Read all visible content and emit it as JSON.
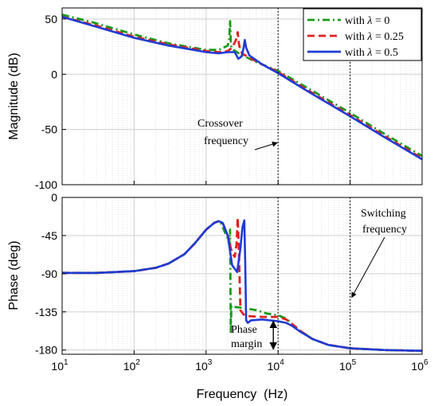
{
  "chart_data": [
    {
      "type": "line",
      "title": "",
      "xlabel": "",
      "ylabel": "Magnitude (dB)",
      "xscale": "log",
      "xlim": [
        10,
        1000000
      ],
      "ylim": [
        -100,
        60
      ],
      "yticks": [
        -100,
        -50,
        0,
        50
      ],
      "ytick_labels": [
        "-100",
        "-50",
        "0",
        "50"
      ],
      "grid": true,
      "legend_position": "top-right",
      "series": [
        {
          "name": "with λ = 0",
          "legend_prefix": "with ",
          "legend_symbol": "λ",
          "legend_suffix": " = 0",
          "color": "#1a9a1a",
          "dash": "dash-dot",
          "x": [
            10,
            30,
            100,
            300,
            1000,
            1500,
            2000,
            2100,
            2150,
            2200,
            2250,
            2400,
            3000,
            5000,
            10000,
            30000,
            100000,
            300000,
            1000000
          ],
          "y": [
            54,
            46,
            36,
            28,
            22,
            22,
            26,
            32,
            49,
            30,
            24,
            22,
            18,
            11,
            3,
            -15,
            -35,
            -54,
            -74
          ]
        },
        {
          "name": "with λ = 0.25",
          "legend_prefix": "with ",
          "legend_symbol": "λ",
          "legend_suffix": " = 0.25",
          "color": "#e02020",
          "dash": "dash",
          "x": [
            10,
            30,
            100,
            300,
            1000,
            1500,
            2000,
            2300,
            2600,
            2750,
            2850,
            3000,
            3300,
            4000,
            6000,
            10000,
            30000,
            100000,
            300000,
            1000000
          ],
          "y": [
            52,
            44,
            34,
            27,
            21,
            20,
            21,
            24,
            31,
            38,
            28,
            21,
            18,
            15,
            9,
            2,
            -17,
            -37,
            -56,
            -76
          ]
        },
        {
          "name": "with λ = 0.5",
          "legend_prefix": "with ",
          "legend_symbol": "λ",
          "legend_suffix": " = 0.5",
          "color": "#1f3bd6",
          "dash": "solid",
          "x": [
            10,
            30,
            100,
            300,
            1000,
            1500,
            2000,
            2500,
            2800,
            3100,
            3300,
            3450,
            3600,
            4000,
            6000,
            10000,
            30000,
            100000,
            300000,
            1000000
          ],
          "y": [
            52,
            43,
            33,
            26,
            20,
            19,
            20,
            20,
            14,
            16,
            23,
            31,
            24,
            17,
            9,
            1,
            -18,
            -38,
            -57,
            -77
          ]
        }
      ],
      "annotations": [
        {
          "text_lines": [
            "Crossover",
            "frequency"
          ],
          "x": 10000,
          "arrow_to_y": -62
        }
      ]
    },
    {
      "type": "line",
      "title": "",
      "xlabel": "Frequency  (Hz)",
      "ylabel": "Phase (deg)",
      "xscale": "log",
      "xlim": [
        10,
        1000000
      ],
      "ylim": [
        -185,
        0
      ],
      "yticks": [
        -180,
        -135,
        -90,
        -45,
        0
      ],
      "ytick_labels": [
        "-180",
        "-135",
        "-90",
        "-45",
        "0"
      ],
      "xticks": [
        10,
        100,
        1000,
        10000,
        100000,
        1000000
      ],
      "xtick_labels": [
        [
          "10",
          "1"
        ],
        [
          "10",
          "2"
        ],
        [
          "10",
          "3"
        ],
        [
          "10",
          "4"
        ],
        [
          "10",
          "5"
        ],
        [
          "10",
          "6"
        ]
      ],
      "grid": true,
      "series": [
        {
          "name": "with λ = 0",
          "color": "#1a9a1a",
          "dash": "dash-dot",
          "x": [
            10,
            30,
            100,
            200,
            300,
            500,
            700,
            1000,
            1300,
            1500,
            1600,
            1800,
            2000,
            2100,
            2150,
            2200,
            2250,
            2400,
            3000,
            5000,
            7000,
            10000,
            13000,
            16000,
            20000,
            30000,
            50000,
            100000,
            300000,
            1000000
          ],
          "y": [
            -89,
            -89,
            -87,
            -83,
            -78,
            -67,
            -54,
            -38,
            -30,
            -28,
            -30,
            -40,
            -48,
            -55,
            -38,
            -160,
            -128,
            -129,
            -130,
            -133,
            -137,
            -139,
            -143,
            -150,
            -157,
            -167,
            -174,
            -178,
            -180,
            -181
          ]
        },
        {
          "name": "with λ = 0.25",
          "color": "#e02020",
          "dash": "dash",
          "x": [
            10,
            30,
            100,
            200,
            300,
            500,
            700,
            1000,
            1300,
            1500,
            1700,
            2000,
            2300,
            2500,
            2650,
            2750,
            2850,
            3000,
            3300,
            4000,
            6000,
            10000,
            13000,
            16000,
            20000,
            30000,
            50000,
            100000,
            300000,
            1000000
          ],
          "y": [
            -89,
            -89,
            -87,
            -83,
            -78,
            -67,
            -54,
            -38,
            -30,
            -28,
            -30,
            -45,
            -66,
            -70,
            -55,
            -24,
            -60,
            -133,
            -138,
            -140,
            -141,
            -141,
            -144,
            -150,
            -157,
            -167,
            -174,
            -178,
            -180,
            -181
          ]
        },
        {
          "name": "with λ = 0.5",
          "color": "#1f3bd6",
          "dash": "solid",
          "x": [
            10,
            30,
            100,
            200,
            300,
            500,
            700,
            1000,
            1300,
            1500,
            1700,
            2000,
            2300,
            2700,
            3000,
            3200,
            3400,
            3500,
            3600,
            3800,
            4200,
            6000,
            10000,
            13000,
            16000,
            20000,
            30000,
            50000,
            100000,
            300000,
            1000000
          ],
          "y": [
            -89,
            -89,
            -87,
            -83,
            -78,
            -67,
            -54,
            -38,
            -30,
            -28,
            -30,
            -45,
            -80,
            -88,
            -60,
            -35,
            -27,
            -80,
            -145,
            -148,
            -145,
            -144,
            -146,
            -148,
            -152,
            -158,
            -167,
            -174,
            -178,
            -180,
            -181
          ]
        }
      ],
      "annotations": [
        {
          "text_lines": [
            "Phase",
            "margin"
          ],
          "x": 10000,
          "y_from": -180,
          "y_to": -145
        },
        {
          "text_lines": [
            "Switching",
            "frequency"
          ],
          "x": 100000,
          "arrow_to_y": -118
        }
      ]
    }
  ]
}
